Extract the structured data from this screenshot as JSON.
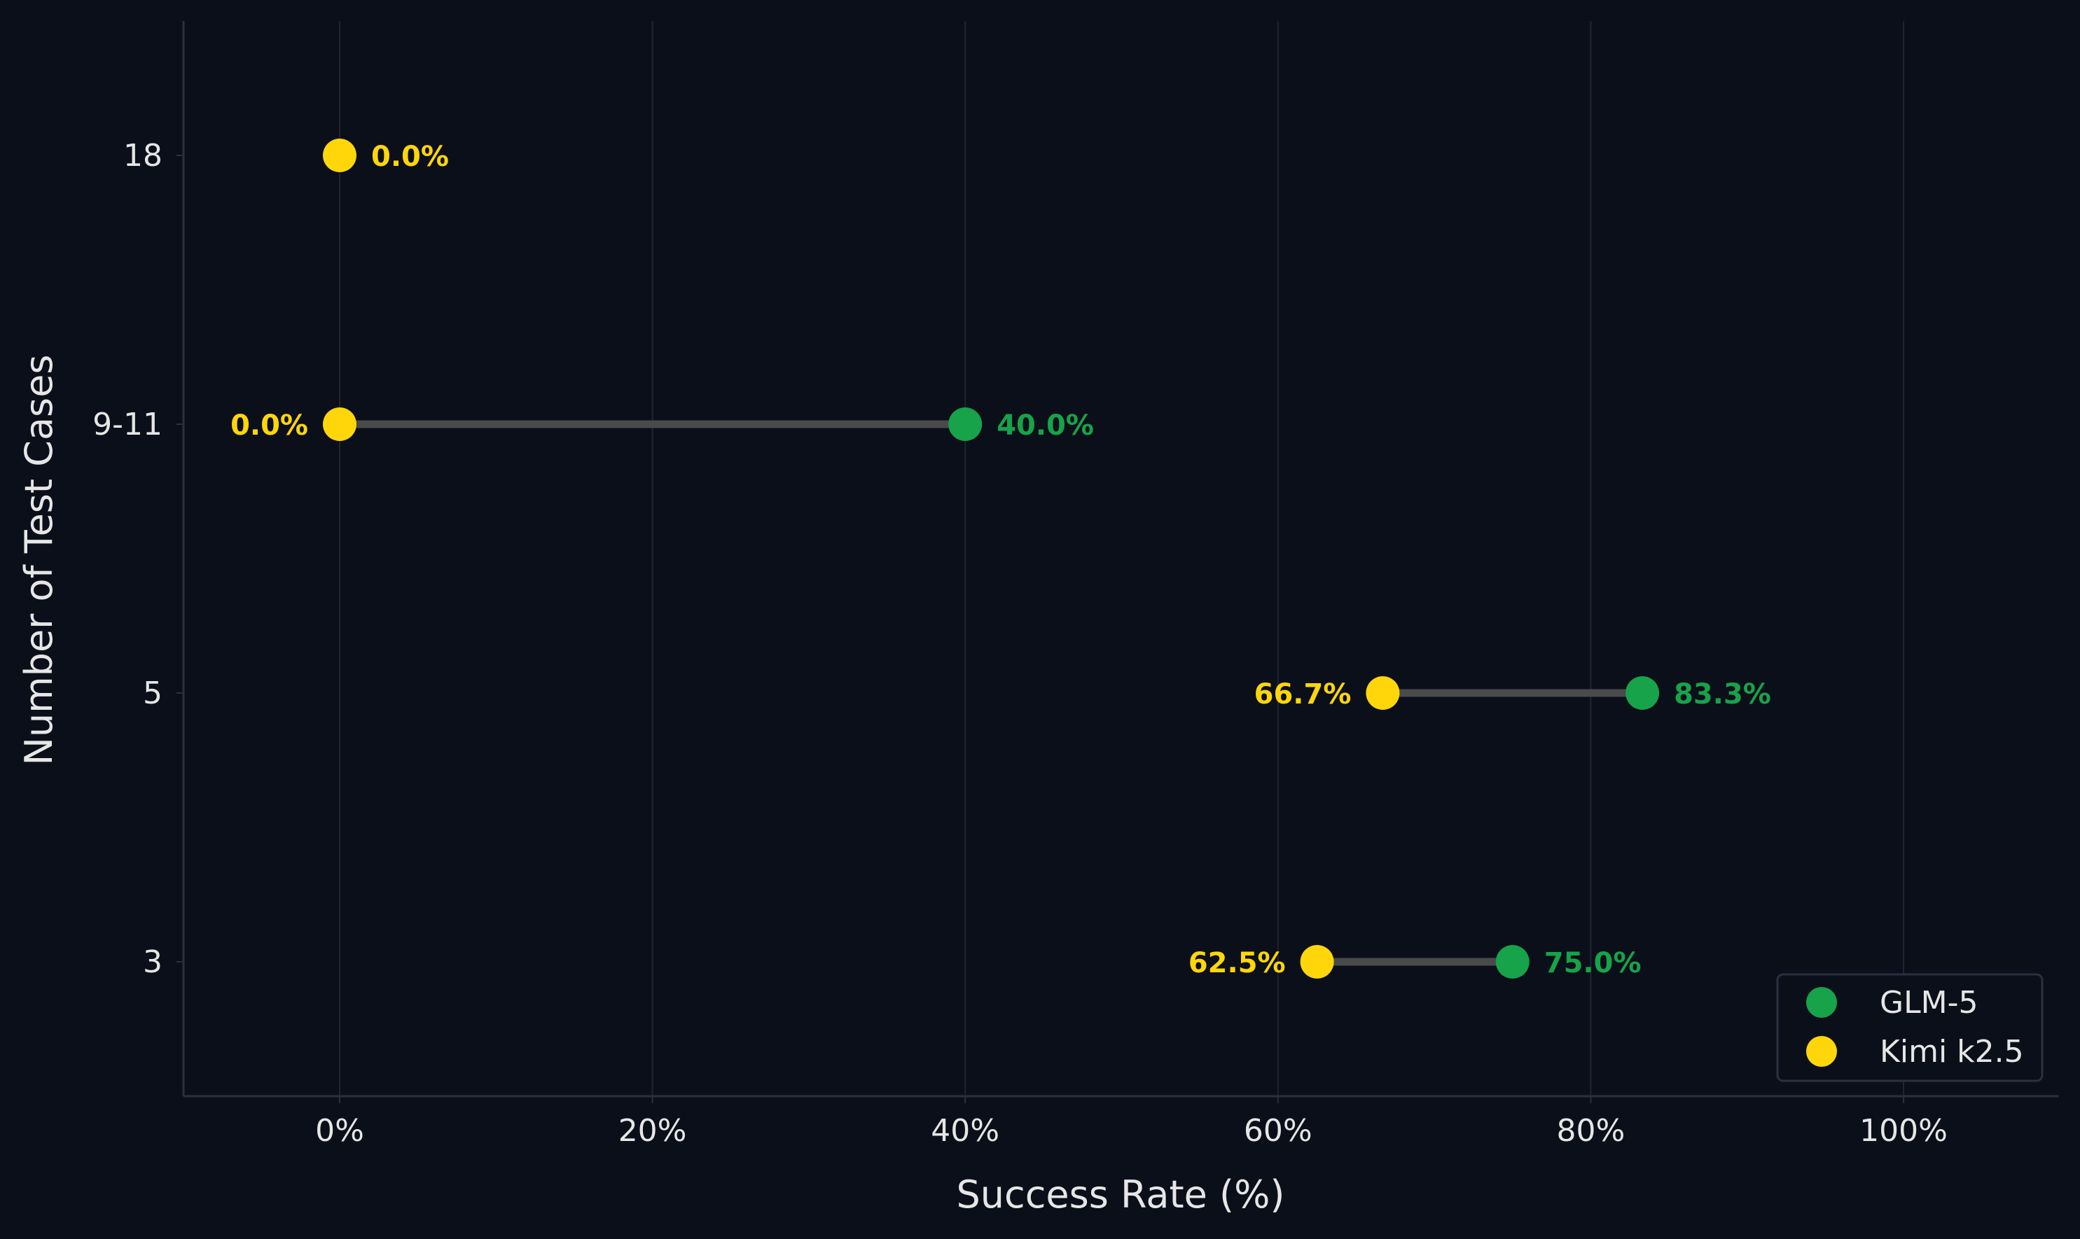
{
  "chart_data": {
    "type": "scatter",
    "subtype": "dumbbell",
    "xlabel": "Success Rate (%)",
    "ylabel": "Number of Test Cases",
    "xlim": [
      -10,
      110
    ],
    "x_ticks": [
      0,
      20,
      40,
      60,
      80,
      100
    ],
    "x_tick_labels": [
      "0%",
      "20%",
      "40%",
      "60%",
      "80%",
      "100%"
    ],
    "categories": [
      "18",
      "9-11",
      "5",
      "3"
    ],
    "grid": "vertical",
    "legend_position": "bottom-right",
    "colors": {
      "background": "#0b0f19",
      "connector": "#4a4a4a",
      "grid": "#1f2533",
      "axis": "#2a3040",
      "text": "#e6e6e6"
    },
    "series": [
      {
        "name": "GLM-5",
        "color": "#16a34a",
        "values": [
          null,
          40.0,
          83.3,
          75.0
        ],
        "labels": [
          "",
          "40.0%",
          "83.3%",
          "75.0%"
        ]
      },
      {
        "name": "Kimi k2.5",
        "color": "#ffd60a",
        "values": [
          0.0,
          0.0,
          66.7,
          62.5
        ],
        "labels": [
          "0.0%",
          "0.0%",
          "66.7%",
          "62.5%"
        ]
      }
    ]
  }
}
